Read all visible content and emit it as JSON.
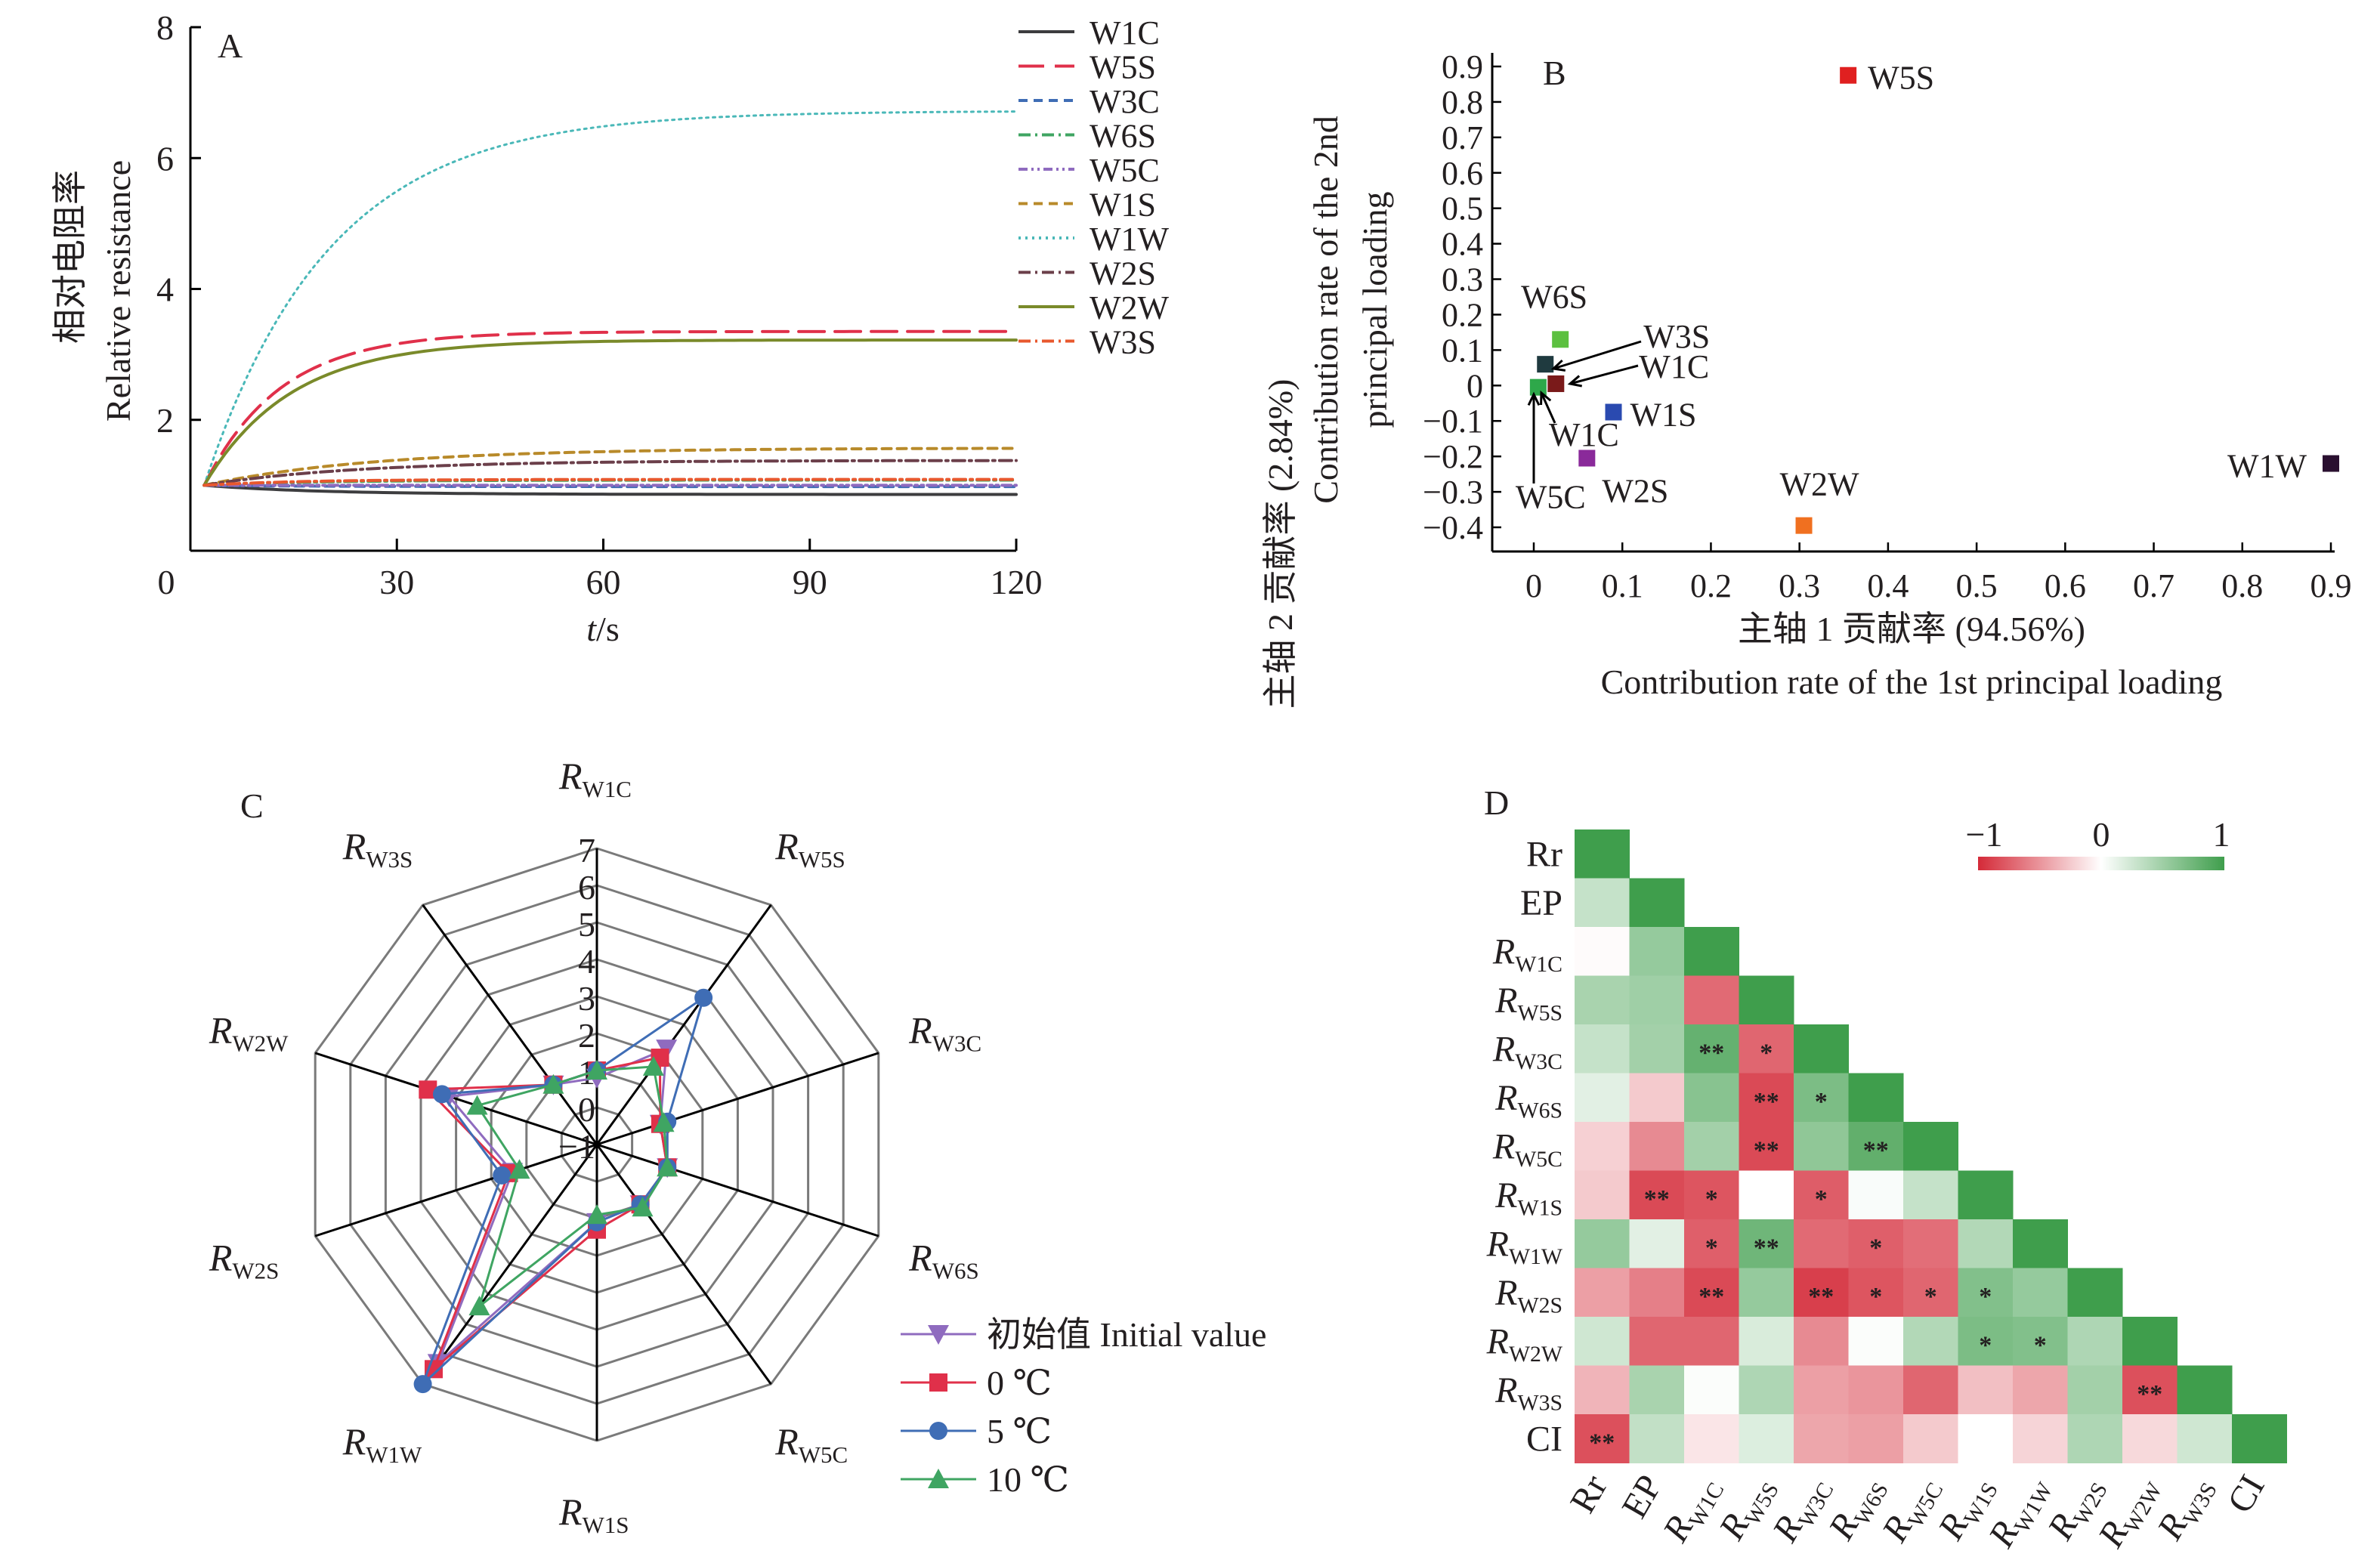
{
  "chart_data": [
    {
      "panel": "A",
      "type": "line",
      "panel_label": "A",
      "xlabel_italic": "t",
      "xlabel_suffix": "/s",
      "ylabel_cn": "相对电阻率",
      "ylabel_en": "Relative resistance",
      "xlim": [
        0,
        120
      ],
      "ylim": [
        0,
        8
      ],
      "xticks": [
        0,
        30,
        60,
        90,
        120
      ],
      "yticks": [
        2,
        4,
        6,
        8
      ],
      "legend_position": "right",
      "series": [
        {
          "name": "W1C",
          "color": "#3d3d3f",
          "dash": "solid",
          "start": 1.0,
          "end": 0.86,
          "rate": 0.06
        },
        {
          "name": "W5S",
          "color": "#e0304a",
          "dash": "longdash",
          "start": 1.0,
          "end": 3.35,
          "rate": 0.09
        },
        {
          "name": "W3C",
          "color": "#3f6db5",
          "dash": "dash",
          "start": 1.0,
          "end": 0.98,
          "rate": 0.06
        },
        {
          "name": "W6S",
          "color": "#3fa562",
          "dash": "dashdot",
          "start": 1.0,
          "end": 1.08,
          "rate": 0.06
        },
        {
          "name": "W5C",
          "color": "#8f6bbf",
          "dash": "dashdotdot",
          "start": 1.0,
          "end": 1.0,
          "rate": 0.06
        },
        {
          "name": "W1S",
          "color": "#b88a2a",
          "dash": "dash",
          "start": 1.0,
          "end": 1.57,
          "rate": 0.04
        },
        {
          "name": "W1W",
          "color": "#4ab8b8",
          "dash": "dot",
          "start": 1.0,
          "end": 6.72,
          "rate": 0.055
        },
        {
          "name": "W2S",
          "color": "#6b3f4a",
          "dash": "dashdot",
          "start": 1.0,
          "end": 1.38,
          "rate": 0.045
        },
        {
          "name": "W2W",
          "color": "#7a8a2a",
          "dash": "solid",
          "start": 1.0,
          "end": 3.22,
          "rate": 0.08
        },
        {
          "name": "W3S",
          "color": "#e8582e",
          "dash": "dashdot",
          "start": 1.0,
          "end": 1.09,
          "rate": 0.07
        }
      ]
    },
    {
      "panel": "B",
      "type": "scatter",
      "panel_label": "B",
      "xlabel_cn": "主轴 1 贡献率 (94.56%)",
      "xlabel_en": "Contribution rate of the 1st principal loading",
      "ylabel_cn": "主轴 2 贡献率 (2.84%)",
      "ylabel_en_1": "Contribution rate of the 2nd",
      "ylabel_en_2": "principal loading",
      "xlim": [
        -0.04,
        0.9
      ],
      "ylim": [
        -0.46,
        0.9
      ],
      "xticks": [
        "0",
        "0.1",
        "0.2",
        "0.3",
        "0.4",
        "0.5",
        "0.6",
        "0.7",
        "0.8",
        "0.9"
      ],
      "yticks": [
        "0.9",
        "0.8",
        "0.7",
        "0.6",
        "0.5",
        "0.4",
        "0.3",
        "0.2",
        "0.1",
        "0",
        "−0.1",
        "−0.2",
        "−0.3",
        "−0.4"
      ],
      "points": [
        {
          "name": "W5S",
          "x": 0.355,
          "y": 0.875,
          "color": "#e02020",
          "label": "W5S"
        },
        {
          "name": "W6S",
          "x": 0.03,
          "y": 0.13,
          "color": "#5cc040",
          "label": "W6S"
        },
        {
          "name": "W3S",
          "x": 0.013,
          "y": 0.06,
          "color": "#1f3a3f",
          "label": "W3S"
        },
        {
          "name": "W1C",
          "x": 0.025,
          "y": 0.005,
          "color": "#7a1a1a",
          "label": "W1C"
        },
        {
          "name": "W5C",
          "x": 0.005,
          "y": -0.005,
          "color": "#2ea84a",
          "label": "W5C"
        },
        {
          "name": "W1S",
          "x": 0.09,
          "y": -0.075,
          "color": "#2a4ab0",
          "label": "W1S"
        },
        {
          "name": "W2S",
          "x": 0.06,
          "y": -0.205,
          "color": "#8a2a9a",
          "label": "W2S"
        },
        {
          "name": "W2W",
          "x": 0.305,
          "y": -0.395,
          "color": "#f07020",
          "label": "W2W"
        },
        {
          "name": "W1W",
          "x": 0.9,
          "y": -0.22,
          "color": "#2a1030",
          "label": "W1W"
        }
      ],
      "annotations": [
        "W3S",
        "W1C",
        "W1C",
        "W5C"
      ]
    },
    {
      "panel": "C",
      "type": "radar",
      "panel_label": "C",
      "rlim": [
        -1,
        7
      ],
      "rticks": [
        "−1",
        "0",
        "1",
        "2",
        "3",
        "4",
        "5",
        "6",
        "7"
      ],
      "axes": [
        "W1C",
        "W5S",
        "W3C",
        "W6S",
        "W5C",
        "W1S",
        "W1W",
        "W2S",
        "W2W",
        "W3S"
      ],
      "axis_prefix": "R",
      "legend_position": "bottom-right",
      "series": [
        {
          "name": "初始值 Initial value",
          "color": "#8f6bbf",
          "marker": "triangle-down",
          "values": [
            0.8,
            2.2,
            0.8,
            1.0,
            1.0,
            1.1,
            6.3,
            1.4,
            3.2,
            1.0
          ]
        },
        {
          "name": "0 ℃",
          "color": "#e0304a",
          "marker": "square",
          "values": [
            1.0,
            1.9,
            0.8,
            1.0,
            1.0,
            1.3,
            6.5,
            1.5,
            3.8,
            1.0
          ]
        },
        {
          "name": "5 ℃",
          "color": "#3f6db5",
          "marker": "circle",
          "values": [
            1.0,
            3.9,
            1.0,
            1.0,
            1.0,
            1.1,
            7.0,
            1.7,
            3.4,
            1.0
          ]
        },
        {
          "name": "10 ℃",
          "color": "#3fa562",
          "marker": "triangle-up",
          "values": [
            1.0,
            1.6,
            0.9,
            1.0,
            1.1,
            0.9,
            4.4,
            1.2,
            2.4,
            1.0
          ]
        }
      ]
    },
    {
      "panel": "D",
      "type": "heatmap",
      "panel_label": "D",
      "labels": [
        {
          "main": "Rr",
          "sub": ""
        },
        {
          "main": "EP",
          "sub": ""
        },
        {
          "main": "R",
          "sub": "W1C"
        },
        {
          "main": "R",
          "sub": "W5S"
        },
        {
          "main": "R",
          "sub": "W3C"
        },
        {
          "main": "R",
          "sub": "W6S"
        },
        {
          "main": "R",
          "sub": "W5C"
        },
        {
          "main": "R",
          "sub": "W1S"
        },
        {
          "main": "R",
          "sub": "W1W"
        },
        {
          "main": "R",
          "sub": "W2S"
        },
        {
          "main": "R",
          "sub": "W2W"
        },
        {
          "main": "R",
          "sub": "W3S"
        },
        {
          "main": "CI",
          "sub": ""
        }
      ],
      "colorbar": {
        "min": -1,
        "max": 1,
        "ticks": [
          "−1",
          "0",
          "1"
        ],
        "low_color": "#d42a38",
        "mid_color": "#ffffff",
        "high_color": "#3f9e4c"
      },
      "matrix_lower": [
        [
          1
        ],
        [
          0.3,
          1
        ],
        [
          -0.02,
          0.55,
          1
        ],
        [
          0.45,
          0.5,
          -0.7,
          1
        ],
        [
          0.3,
          0.48,
          0.8,
          -0.72,
          1
        ],
        [
          0.15,
          -0.25,
          0.62,
          -0.85,
          0.68,
          1
        ],
        [
          -0.22,
          -0.55,
          0.48,
          -0.85,
          0.58,
          0.82,
          1
        ],
        [
          -0.25,
          -0.85,
          -0.8,
          0.0,
          -0.76,
          0.03,
          0.3,
          1
        ],
        [
          0.55,
          0.15,
          -0.75,
          0.75,
          -0.7,
          -0.75,
          -0.68,
          0.4,
          1
        ],
        [
          -0.45,
          -0.6,
          -0.85,
          0.55,
          -0.9,
          -0.8,
          -0.72,
          0.65,
          0.55,
          1
        ],
        [
          0.25,
          -0.72,
          -0.72,
          0.2,
          -0.55,
          0.02,
          0.4,
          0.68,
          0.65,
          0.42,
          1
        ],
        [
          -0.35,
          0.45,
          0.02,
          0.42,
          -0.45,
          -0.5,
          -0.72,
          -0.3,
          -0.42,
          0.48,
          -0.82,
          1
        ],
        [
          -0.82,
          0.32,
          -0.12,
          0.18,
          -0.42,
          -0.45,
          -0.25,
          0.0,
          -0.2,
          0.42,
          -0.18,
          0.25,
          1
        ]
      ],
      "significance": [
        {
          "row": 4,
          "col": 2,
          "mark": "**"
        },
        {
          "row": 4,
          "col": 3,
          "mark": "*"
        },
        {
          "row": 5,
          "col": 3,
          "mark": "**"
        },
        {
          "row": 5,
          "col": 4,
          "mark": "*"
        },
        {
          "row": 6,
          "col": 3,
          "mark": "**"
        },
        {
          "row": 6,
          "col": 5,
          "mark": "**"
        },
        {
          "row": 7,
          "col": 1,
          "mark": "**"
        },
        {
          "row": 7,
          "col": 2,
          "mark": "*"
        },
        {
          "row": 7,
          "col": 4,
          "mark": "*"
        },
        {
          "row": 8,
          "col": 2,
          "mark": "*"
        },
        {
          "row": 8,
          "col": 3,
          "mark": "**"
        },
        {
          "row": 8,
          "col": 5,
          "mark": "*"
        },
        {
          "row": 9,
          "col": 2,
          "mark": "**"
        },
        {
          "row": 9,
          "col": 4,
          "mark": "**"
        },
        {
          "row": 9,
          "col": 5,
          "mark": "*"
        },
        {
          "row": 9,
          "col": 6,
          "mark": "*"
        },
        {
          "row": 9,
          "col": 7,
          "mark": "*"
        },
        {
          "row": 10,
          "col": 7,
          "mark": "*"
        },
        {
          "row": 10,
          "col": 8,
          "mark": "*"
        },
        {
          "row": 11,
          "col": 10,
          "mark": "**"
        },
        {
          "row": 12,
          "col": 0,
          "mark": "**"
        }
      ]
    }
  ]
}
